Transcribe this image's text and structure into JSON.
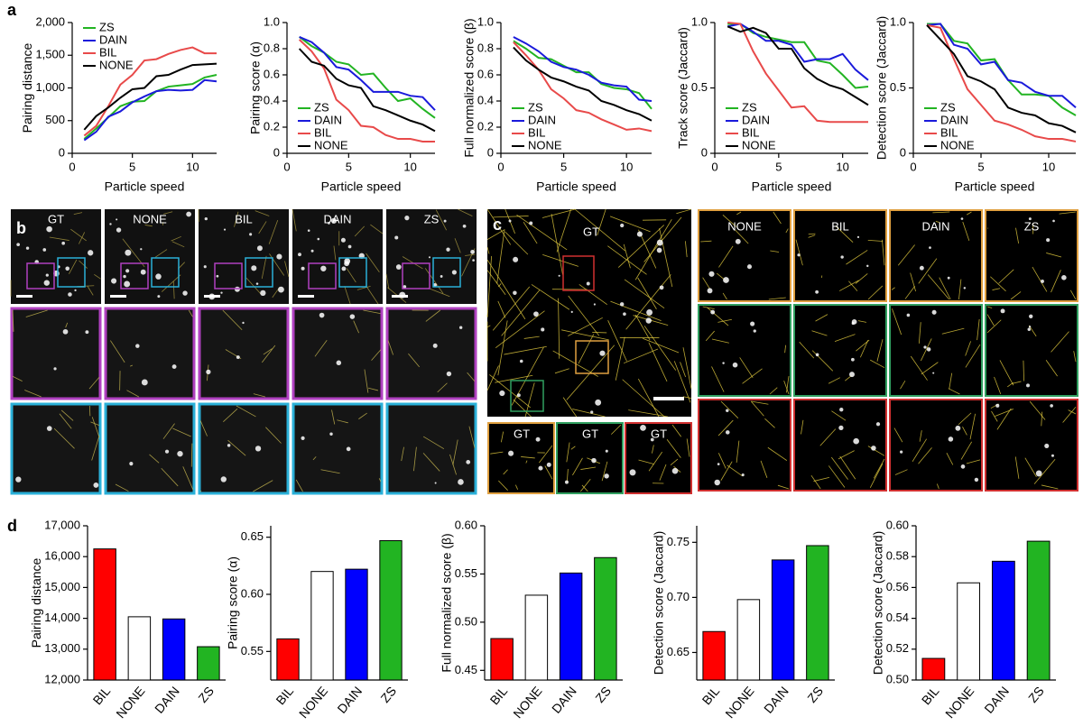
{
  "panel_labels": {
    "a": "a",
    "d": "d"
  },
  "panel_b": {
    "label": "b",
    "columns": [
      "GT",
      "NONE",
      "BIL",
      "DAIN",
      "ZS"
    ]
  },
  "panel_c": {
    "label": "c",
    "main": "GT",
    "insets": [
      "GT",
      "GT",
      "GT"
    ],
    "columns": [
      "NONE",
      "BIL",
      "DAIN",
      "ZS"
    ]
  },
  "chart_data": [
    {
      "type": "line",
      "xlabel": "Particle speed",
      "ylabel": "Pairing distance",
      "legend": "upper left",
      "x": [
        1,
        2,
        3,
        4,
        5,
        6,
        7,
        8,
        9,
        10,
        11,
        12
      ],
      "xlim": [
        0,
        12
      ],
      "xticks": [
        0,
        5,
        10
      ],
      "ylim": [
        0,
        2000
      ],
      "yticks": [
        0,
        500,
        {
          "value": 1000,
          "label": "1,000"
        },
        {
          "value": 1500,
          "label": "1,500"
        },
        {
          "value": 2000,
          "label": "2,000"
        }
      ],
      "series": [
        {
          "name": "ZS",
          "color": "#22b422",
          "values": [
            220,
            380,
            550,
            720,
            790,
            800,
            950,
            1020,
            1040,
            1060,
            1160,
            1200
          ]
        },
        {
          "name": "DAIN",
          "color": "#1a1adb",
          "values": [
            200,
            330,
            560,
            640,
            780,
            870,
            950,
            970,
            960,
            970,
            1120,
            1100
          ]
        },
        {
          "name": "BIL",
          "color": "#e84a4a",
          "values": [
            270,
            420,
            720,
            1050,
            1200,
            1420,
            1440,
            1520,
            1580,
            1620,
            1530,
            1530
          ]
        },
        {
          "name": "NONE",
          "color": "#000000",
          "values": [
            360,
            570,
            700,
            850,
            980,
            1000,
            1180,
            1200,
            1280,
            1350,
            1360,
            1370
          ]
        }
      ]
    },
    {
      "type": "line",
      "xlabel": "Particle speed",
      "ylabel": "Pairing score (α)",
      "legend": "lower left",
      "x": [
        1,
        2,
        3,
        4,
        5,
        6,
        7,
        8,
        9,
        10,
        11,
        12
      ],
      "xlim": [
        0,
        12
      ],
      "xticks": [
        0,
        5,
        10
      ],
      "ylim": [
        0,
        1
      ],
      "yticks": [
        0,
        0.2,
        0.4,
        0.6,
        0.8,
        {
          "value": 1,
          "label": "1.0"
        }
      ],
      "series": [
        {
          "name": "ZS",
          "color": "#22b422",
          "values": [
            0.89,
            0.82,
            0.77,
            0.7,
            0.68,
            0.6,
            0.61,
            0.5,
            0.4,
            0.42,
            0.34,
            0.27
          ]
        },
        {
          "name": "DAIN",
          "color": "#1a1adb",
          "values": [
            0.89,
            0.85,
            0.77,
            0.66,
            0.64,
            0.56,
            0.47,
            0.47,
            0.47,
            0.44,
            0.43,
            0.33
          ]
        },
        {
          "name": "BIL",
          "color": "#e84a4a",
          "values": [
            0.87,
            0.78,
            0.65,
            0.41,
            0.33,
            0.21,
            0.2,
            0.14,
            0.11,
            0.11,
            0.09,
            0.09
          ]
        },
        {
          "name": "NONE",
          "color": "#000000",
          "values": [
            0.8,
            0.7,
            0.67,
            0.57,
            0.52,
            0.5,
            0.36,
            0.33,
            0.29,
            0.25,
            0.22,
            0.17
          ]
        }
      ]
    },
    {
      "type": "line",
      "xlabel": "Particle speed",
      "ylabel": "Full normalized score (β)",
      "legend": "lower left",
      "x": [
        1,
        2,
        3,
        4,
        5,
        6,
        7,
        8,
        9,
        10,
        11,
        12
      ],
      "xlim": [
        0,
        12
      ],
      "xticks": [
        0,
        5,
        10
      ],
      "ylim": [
        0,
        1
      ],
      "yticks": [
        0,
        0.2,
        0.4,
        0.6,
        0.8,
        {
          "value": 1,
          "label": "1.0"
        }
      ],
      "series": [
        {
          "name": "ZS",
          "color": "#22b422",
          "values": [
            0.86,
            0.8,
            0.73,
            0.72,
            0.67,
            0.62,
            0.62,
            0.53,
            0.5,
            0.49,
            0.46,
            0.34
          ]
        },
        {
          "name": "DAIN",
          "color": "#1a1adb",
          "values": [
            0.89,
            0.84,
            0.78,
            0.7,
            0.66,
            0.64,
            0.6,
            0.54,
            0.52,
            0.51,
            0.41,
            0.4
          ]
        },
        {
          "name": "BIL",
          "color": "#e84a4a",
          "values": [
            0.85,
            0.75,
            0.64,
            0.49,
            0.42,
            0.33,
            0.31,
            0.26,
            0.22,
            0.18,
            0.19,
            0.17
          ]
        },
        {
          "name": "NONE",
          "color": "#000000",
          "values": [
            0.81,
            0.71,
            0.64,
            0.58,
            0.55,
            0.51,
            0.48,
            0.4,
            0.37,
            0.33,
            0.3,
            0.25
          ]
        }
      ]
    },
    {
      "type": "line",
      "xlabel": "Particle speed",
      "ylabel": "Track score (Jaccard)",
      "legend": "lower left",
      "x": [
        1,
        2,
        3,
        4,
        5,
        6,
        7,
        8,
        9,
        10,
        11,
        12
      ],
      "xlim": [
        0,
        12
      ],
      "xticks": [
        0,
        5,
        10
      ],
      "ylim": [
        0,
        1
      ],
      "yticks": [
        0,
        0.5,
        {
          "value": 1,
          "label": "1.0"
        }
      ],
      "series": [
        {
          "name": "ZS",
          "color": "#22b422",
          "values": [
            0.99,
            0.99,
            0.92,
            0.89,
            0.87,
            0.85,
            0.85,
            0.71,
            0.69,
            0.6,
            0.5,
            0.51
          ]
        },
        {
          "name": "DAIN",
          "color": "#1a1adb",
          "values": [
            0.97,
            0.99,
            0.93,
            0.86,
            0.86,
            0.83,
            0.7,
            0.72,
            0.72,
            0.76,
            0.64,
            0.56
          ]
        },
        {
          "name": "BIL",
          "color": "#e84a4a",
          "values": [
            1.0,
            0.99,
            0.78,
            0.61,
            0.48,
            0.35,
            0.36,
            0.25,
            0.24,
            0.24,
            0.24,
            0.24
          ]
        },
        {
          "name": "NONE",
          "color": "#000000",
          "values": [
            0.97,
            0.93,
            0.96,
            0.92,
            0.8,
            0.8,
            0.65,
            0.57,
            0.52,
            0.49,
            0.43,
            0.37
          ]
        }
      ]
    },
    {
      "type": "line",
      "xlabel": "Particle speed",
      "ylabel": "Detection score (Jaccard)",
      "legend": "lower left",
      "x": [
        1,
        2,
        3,
        4,
        5,
        6,
        7,
        8,
        9,
        10,
        11,
        12
      ],
      "xlim": [
        0,
        12
      ],
      "xticks": [
        0,
        5,
        10
      ],
      "ylim": [
        0,
        1
      ],
      "yticks": [
        0,
        0.5,
        {
          "value": 1,
          "label": "1.0"
        }
      ],
      "series": [
        {
          "name": "ZS",
          "color": "#22b422",
          "values": [
            0.99,
            0.99,
            0.86,
            0.84,
            0.71,
            0.72,
            0.56,
            0.45,
            0.45,
            0.44,
            0.35,
            0.29
          ]
        },
        {
          "name": "DAIN",
          "color": "#1a1adb",
          "values": [
            0.98,
            0.99,
            0.83,
            0.8,
            0.68,
            0.7,
            0.56,
            0.54,
            0.47,
            0.44,
            0.44,
            0.35
          ]
        },
        {
          "name": "BIL",
          "color": "#e84a4a",
          "values": [
            0.98,
            0.96,
            0.72,
            0.49,
            0.37,
            0.25,
            0.22,
            0.18,
            0.13,
            0.11,
            0.11,
            0.09
          ]
        },
        {
          "name": "NONE",
          "color": "#000000",
          "values": [
            0.98,
            0.87,
            0.76,
            0.59,
            0.55,
            0.49,
            0.35,
            0.31,
            0.29,
            0.23,
            0.21,
            0.16
          ]
        }
      ]
    },
    {
      "type": "bar",
      "ylabel": "Pairing distance",
      "categories": [
        "BIL",
        "NONE",
        "DAIN",
        "ZS"
      ],
      "colors": [
        "#ff0000",
        "#ffffff",
        "#0000ff",
        "#22b422"
      ],
      "values": [
        16250,
        14050,
        13980,
        13080
      ],
      "ylim": [
        12000,
        17000
      ],
      "yticks": [
        {
          "value": 12000,
          "label": "12,000"
        },
        {
          "value": 13000,
          "label": "13,000"
        },
        {
          "value": 14000,
          "label": "14,000"
        },
        {
          "value": 15000,
          "label": "15,000"
        },
        {
          "value": 16000,
          "label": "16,000"
        },
        {
          "value": 17000,
          "label": "17,000"
        }
      ]
    },
    {
      "type": "bar",
      "ylabel": "Pairing score (α)",
      "categories": [
        "BIL",
        "NONE",
        "DAIN",
        "ZS"
      ],
      "colors": [
        "#ff0000",
        "#ffffff",
        "#0000ff",
        "#22b422"
      ],
      "values": [
        0.561,
        0.62,
        0.622,
        0.647
      ],
      "ylim": [
        0.525,
        0.66
      ],
      "yticks": [
        0.55,
        {
          "value": 0.6,
          "label": "0.60"
        },
        0.65
      ]
    },
    {
      "type": "bar",
      "ylabel": "Full normalized score (β)",
      "categories": [
        "BIL",
        "NONE",
        "DAIN",
        "ZS"
      ],
      "colors": [
        "#ff0000",
        "#ffffff",
        "#0000ff",
        "#22b422"
      ],
      "values": [
        0.483,
        0.528,
        0.551,
        0.567
      ],
      "ylim": [
        0.44,
        0.6
      ],
      "yticks": [
        0.45,
        {
          "value": 0.5,
          "label": "0.50"
        },
        0.55,
        {
          "value": 0.6,
          "label": "0.60"
        }
      ]
    },
    {
      "type": "bar",
      "ylabel": "Detection score (Jaccard)",
      "categories": [
        "BIL",
        "NONE",
        "DAIN",
        "ZS"
      ],
      "colors": [
        "#ff0000",
        "#ffffff",
        "#0000ff",
        "#22b422"
      ],
      "values": [
        0.669,
        0.698,
        0.734,
        0.747
      ],
      "ylim": [
        0.625,
        0.765
      ],
      "yticks": [
        0.65,
        {
          "value": 0.7,
          "label": "0.70"
        },
        0.75
      ]
    },
    {
      "type": "bar",
      "ylabel": "Detection score (Jaccard)",
      "categories": [
        "BIL",
        "NONE",
        "DAIN",
        "ZS"
      ],
      "colors": [
        "#ff0000",
        "#ffffff",
        "#0000ff",
        "#22b422"
      ],
      "values": [
        0.514,
        0.563,
        0.577,
        0.59
      ],
      "ylim": [
        0.5,
        0.6
      ],
      "yticks": [
        {
          "value": 0.5,
          "label": "0.50"
        },
        0.52,
        0.54,
        0.56,
        0.58,
        {
          "value": 0.6,
          "label": "0.60"
        }
      ]
    }
  ]
}
